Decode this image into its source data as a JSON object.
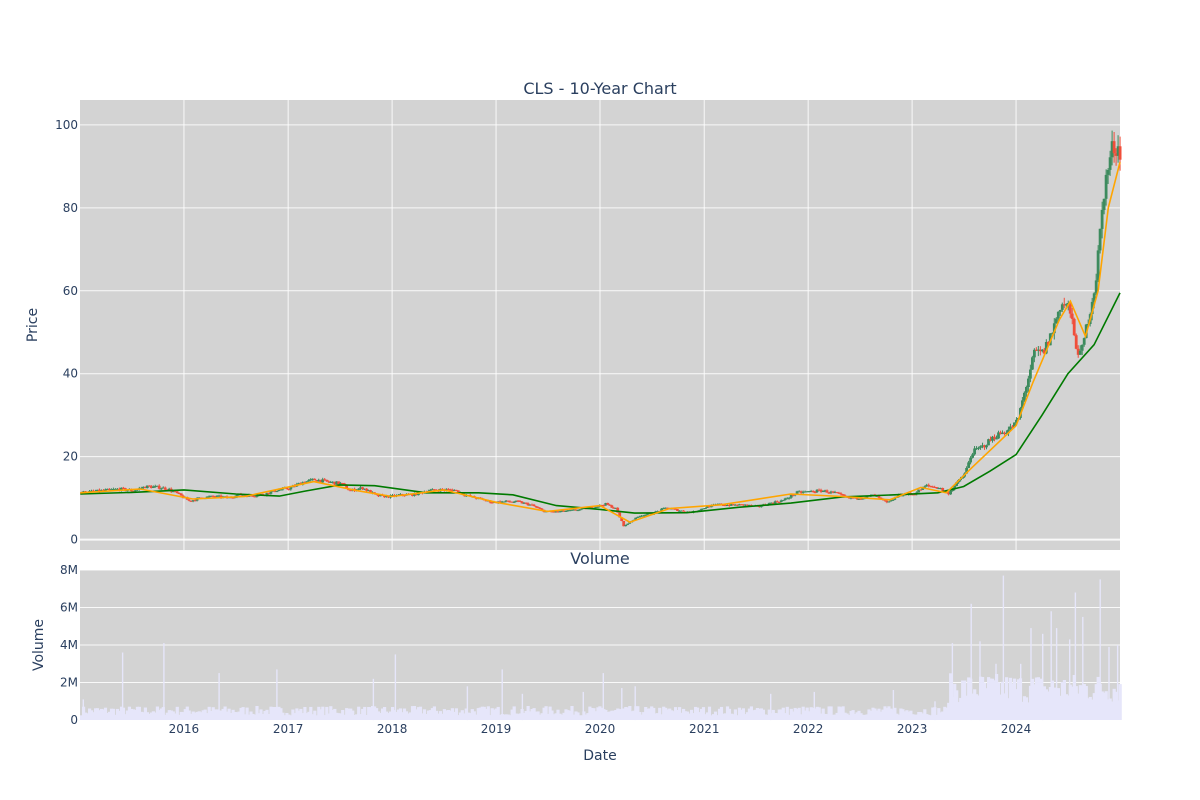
{
  "chart_data": [
    {
      "type": "candlestick",
      "title": "CLS - 10-Year Chart",
      "ylabel": "Price",
      "ylim": [
        -2.5,
        106
      ],
      "yticks": [
        0,
        20,
        40,
        60,
        80,
        100
      ],
      "xlim": [
        "2015-01-01",
        "2024-12-31"
      ],
      "xticks": [
        "2016",
        "2017",
        "2018",
        "2019",
        "2020",
        "2021",
        "2022",
        "2023",
        "2024"
      ],
      "grid": true,
      "background": "#d3d3d3",
      "increasing_color": "#3d8b5e",
      "decreasing_color": "#f04e3a",
      "short_ma_color": "#ffa500",
      "long_ma_color": "#007a00",
      "close_points": [
        [
          "2015-01-02",
          11.4
        ],
        [
          "2015-02-15",
          11.6
        ],
        [
          "2015-04-01",
          11.9
        ],
        [
          "2015-05-15",
          12.2
        ],
        [
          "2015-07-01",
          11.8
        ],
        [
          "2015-08-15",
          12.8
        ],
        [
          "2015-10-01",
          12.6
        ],
        [
          "2015-11-01",
          12.2
        ],
        [
          "2015-12-01",
          11.2
        ],
        [
          "2016-01-15",
          9.3
        ],
        [
          "2016-03-01",
          10.2
        ],
        [
          "2016-04-15",
          10.4
        ],
        [
          "2016-06-01",
          10.1
        ],
        [
          "2016-07-01",
          10.8
        ],
        [
          "2016-08-15",
          10.6
        ],
        [
          "2016-10-01",
          10.9
        ],
        [
          "2016-11-15",
          11.9
        ],
        [
          "2017-01-01",
          12.4
        ],
        [
          "2017-02-15",
          13.8
        ],
        [
          "2017-04-01",
          14.5
        ],
        [
          "2017-05-15",
          13.9
        ],
        [
          "2017-07-01",
          13.5
        ],
        [
          "2017-08-01",
          11.8
        ],
        [
          "2017-09-15",
          12.5
        ],
        [
          "2017-11-01",
          10.6
        ],
        [
          "2017-12-15",
          10.4
        ],
        [
          "2018-02-01",
          10.8
        ],
        [
          "2018-03-15",
          10.9
        ],
        [
          "2018-05-01",
          11.8
        ],
        [
          "2018-06-15",
          12.0
        ],
        [
          "2018-08-01",
          12.0
        ],
        [
          "2018-09-15",
          10.6
        ],
        [
          "2018-11-01",
          9.8
        ],
        [
          "2018-12-15",
          9.0
        ],
        [
          "2019-02-01",
          9.2
        ],
        [
          "2019-03-15",
          9.1
        ],
        [
          "2019-05-01",
          8.3
        ],
        [
          "2019-06-15",
          6.8
        ],
        [
          "2019-08-01",
          6.7
        ],
        [
          "2019-09-15",
          7.0
        ],
        [
          "2019-11-01",
          7.4
        ],
        [
          "2019-12-15",
          8.0
        ],
        [
          "2020-01-15",
          8.6
        ],
        [
          "2020-02-20",
          7.5
        ],
        [
          "2020-03-20",
          3.2
        ],
        [
          "2020-04-15",
          4.5
        ],
        [
          "2020-05-15",
          5.8
        ],
        [
          "2020-07-01",
          6.4
        ],
        [
          "2020-08-15",
          7.7
        ],
        [
          "2020-10-01",
          7.0
        ],
        [
          "2020-11-15",
          6.6
        ],
        [
          "2021-01-01",
          7.8
        ],
        [
          "2021-02-15",
          8.5
        ],
        [
          "2021-04-01",
          8.3
        ],
        [
          "2021-05-15",
          8.4
        ],
        [
          "2021-07-01",
          7.9
        ],
        [
          "2021-08-15",
          8.8
        ],
        [
          "2021-10-01",
          9.5
        ],
        [
          "2021-11-15",
          11.3
        ],
        [
          "2022-01-01",
          11.6
        ],
        [
          "2022-02-15",
          11.8
        ],
        [
          "2022-04-01",
          11.2
        ],
        [
          "2022-05-15",
          10.0
        ],
        [
          "2022-07-01",
          10.1
        ],
        [
          "2022-08-15",
          10.7
        ],
        [
          "2022-10-01",
          8.8
        ],
        [
          "2022-11-15",
          10.9
        ],
        [
          "2023-01-01",
          11.0
        ],
        [
          "2023-02-15",
          13.0
        ],
        [
          "2023-04-01",
          12.5
        ],
        [
          "2023-05-01",
          11.0
        ],
        [
          "2023-06-01",
          13.5
        ],
        [
          "2023-07-01",
          16.0
        ],
        [
          "2023-07-25",
          21.0
        ],
        [
          "2023-09-01",
          22.5
        ],
        [
          "2023-10-15",
          25.0
        ],
        [
          "2023-12-01",
          26.5
        ],
        [
          "2024-01-01",
          28.5
        ],
        [
          "2024-01-31",
          37.0
        ],
        [
          "2024-03-01",
          45.0
        ],
        [
          "2024-04-01",
          45.0
        ],
        [
          "2024-05-01",
          50.0
        ],
        [
          "2024-06-01",
          57.0
        ],
        [
          "2024-07-01",
          56.0
        ],
        [
          "2024-07-20",
          48.0
        ],
        [
          "2024-08-10",
          44.0
        ],
        [
          "2024-09-01",
          52.0
        ],
        [
          "2024-10-01",
          62.0
        ],
        [
          "2024-11-01",
          85.0
        ],
        [
          "2024-12-01",
          95.0
        ],
        [
          "2024-12-31",
          94.0
        ]
      ],
      "long_ma_points": [
        [
          "2015-01-02",
          11.0
        ],
        [
          "2015-07-01",
          11.4
        ],
        [
          "2016-01-01",
          12.0
        ],
        [
          "2016-07-01",
          11.0
        ],
        [
          "2016-12-01",
          10.5
        ],
        [
          "2017-03-01",
          11.7
        ],
        [
          "2017-07-01",
          13.2
        ],
        [
          "2017-11-01",
          13.0
        ],
        [
          "2018-05-01",
          11.3
        ],
        [
          "2018-11-01",
          11.3
        ],
        [
          "2019-03-01",
          10.8
        ],
        [
          "2019-08-01",
          8.2
        ],
        [
          "2020-01-01",
          7.3
        ],
        [
          "2020-05-01",
          6.4
        ],
        [
          "2020-11-01",
          6.5
        ],
        [
          "2021-05-01",
          7.8
        ],
        [
          "2021-11-01",
          8.8
        ],
        [
          "2022-05-01",
          10.3
        ],
        [
          "2022-11-01",
          10.8
        ],
        [
          "2023-04-01",
          11.3
        ],
        [
          "2023-07-01",
          12.8
        ],
        [
          "2023-10-01",
          16.5
        ],
        [
          "2024-01-01",
          20.5
        ],
        [
          "2024-04-01",
          30.0
        ],
        [
          "2024-07-01",
          40.0
        ],
        [
          "2024-10-01",
          47.0
        ],
        [
          "2024-12-31",
          59.5
        ]
      ],
      "short_ma_points": [
        [
          "2015-01-02",
          11.3
        ],
        [
          "2015-08-01",
          12.2
        ],
        [
          "2016-02-01",
          9.8
        ],
        [
          "2016-08-01",
          10.4
        ],
        [
          "2017-04-01",
          14.0
        ],
        [
          "2017-09-01",
          11.8
        ],
        [
          "2018-01-01",
          10.4
        ],
        [
          "2018-07-01",
          12.0
        ],
        [
          "2019-01-01",
          9.0
        ],
        [
          "2019-07-01",
          6.8
        ],
        [
          "2020-01-01",
          8.2
        ],
        [
          "2020-04-15",
          4.2
        ],
        [
          "2020-09-01",
          7.5
        ],
        [
          "2021-03-01",
          8.4
        ],
        [
          "2021-11-01",
          11.0
        ],
        [
          "2022-05-01",
          10.4
        ],
        [
          "2022-10-15",
          9.6
        ],
        [
          "2023-02-01",
          12.6
        ],
        [
          "2023-05-01",
          11.3
        ],
        [
          "2023-08-01",
          17.5
        ],
        [
          "2023-11-01",
          23.5
        ],
        [
          "2024-01-01",
          27.5
        ],
        [
          "2024-03-01",
          38.0
        ],
        [
          "2024-06-01",
          53.0
        ],
        [
          "2024-07-10",
          57.5
        ],
        [
          "2024-09-01",
          49.0
        ],
        [
          "2024-10-15",
          60.0
        ],
        [
          "2024-11-20",
          80.0
        ],
        [
          "2024-12-31",
          91.0
        ]
      ]
    },
    {
      "type": "bar",
      "title": "Volume",
      "xlabel": "Date",
      "ylabel": "Volume",
      "ylim": [
        0,
        8000000
      ],
      "yticks": [
        0,
        2000000,
        4000000,
        6000000,
        8000000
      ],
      "ytick_labels": [
        "0",
        "2M",
        "4M",
        "6M",
        "8M"
      ],
      "xticks": [
        "2016",
        "2017",
        "2018",
        "2019",
        "2020",
        "2021",
        "2022",
        "2023",
        "2024"
      ],
      "bar_color": "#e6e6fa",
      "spikes": [
        [
          "2015-01-10",
          1100000
        ],
        [
          "2015-05-28",
          3600000
        ],
        [
          "2015-10-20",
          4100000
        ],
        [
          "2016-05-01",
          2500000
        ],
        [
          "2016-11-20",
          2700000
        ],
        [
          "2017-10-25",
          2200000
        ],
        [
          "2018-01-10",
          3500000
        ],
        [
          "2018-09-20",
          1800000
        ],
        [
          "2019-01-20",
          2700000
        ],
        [
          "2019-04-01",
          1400000
        ],
        [
          "2019-11-01",
          1500000
        ],
        [
          "2020-01-10",
          2500000
        ],
        [
          "2020-03-15",
          1700000
        ],
        [
          "2020-05-01",
          1800000
        ],
        [
          "2021-08-20",
          1400000
        ],
        [
          "2022-01-20",
          1500000
        ],
        [
          "2022-10-25",
          1600000
        ],
        [
          "2023-03-20",
          1000000
        ],
        [
          "2023-05-20",
          4100000
        ],
        [
          "2023-07-25",
          6200000
        ],
        [
          "2023-08-25",
          4200000
        ],
        [
          "2023-10-20",
          3000000
        ],
        [
          "2023-11-15",
          7700000
        ],
        [
          "2024-01-15",
          3000000
        ],
        [
          "2024-02-20",
          4900000
        ],
        [
          "2024-04-01",
          4600000
        ],
        [
          "2024-05-01",
          5800000
        ],
        [
          "2024-05-20",
          4900000
        ],
        [
          "2024-07-05",
          4300000
        ],
        [
          "2024-07-25",
          6800000
        ],
        [
          "2024-08-20",
          5500000
        ],
        [
          "2024-10-20",
          7500000
        ],
        [
          "2024-11-20",
          3900000
        ],
        [
          "2024-12-20",
          4000000
        ]
      ]
    }
  ]
}
